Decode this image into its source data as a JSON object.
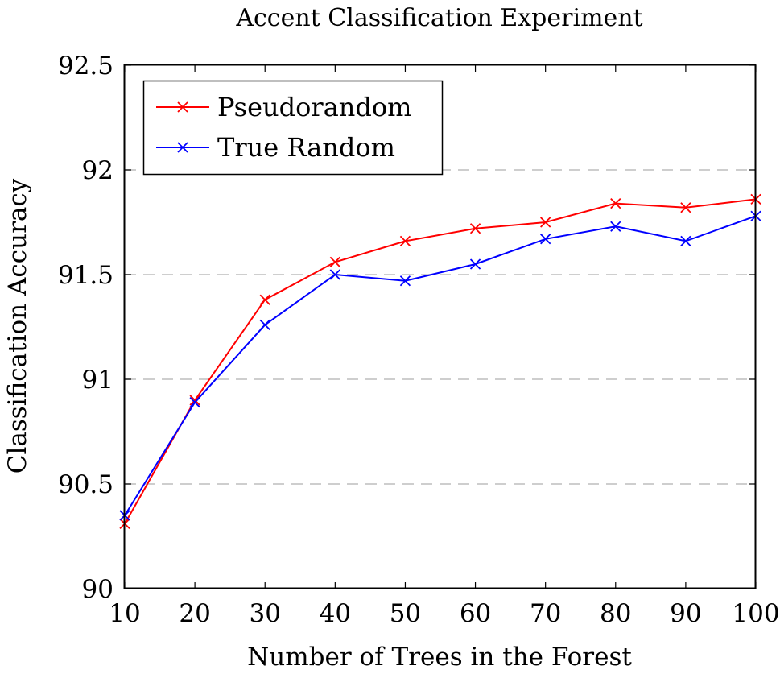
{
  "chart_data": {
    "type": "line",
    "title": "Accent Classification Experiment",
    "xlabel": "Number of Trees in the Forest",
    "ylabel": "Classification Accuracy",
    "xlim": [
      10,
      100
    ],
    "ylim": [
      90,
      92.5
    ],
    "xticks": [
      10,
      20,
      30,
      40,
      50,
      60,
      70,
      80,
      90,
      100
    ],
    "yticks": [
      90,
      90.5,
      91,
      91.5,
      92,
      92.5
    ],
    "xtick_labels": [
      "10",
      "20",
      "30",
      "40",
      "50",
      "60",
      "70",
      "80",
      "90",
      "100"
    ],
    "ytick_labels": [
      "90",
      "90.5",
      "91",
      "91.5",
      "92",
      "92.5"
    ],
    "grid": "horizontal dashed",
    "legend_position": "top-left",
    "x": [
      10,
      20,
      30,
      40,
      50,
      60,
      70,
      80,
      90,
      100
    ],
    "series": [
      {
        "name": "Pseudorandom",
        "color": "#ff0000",
        "marker": "x",
        "values": [
          90.31,
          90.9,
          91.38,
          91.56,
          91.66,
          91.72,
          91.75,
          91.84,
          91.82,
          91.86
        ]
      },
      {
        "name": "True Random",
        "color": "#0000ff",
        "marker": "x",
        "values": [
          90.35,
          90.89,
          91.26,
          91.5,
          91.47,
          91.55,
          91.67,
          91.73,
          91.66,
          91.78
        ]
      }
    ]
  }
}
